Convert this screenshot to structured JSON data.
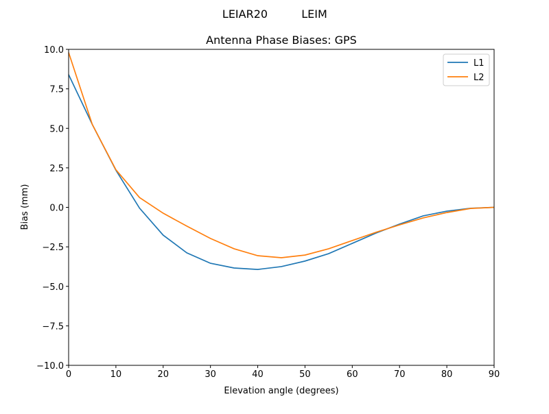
{
  "suptitle_left": "LEIAR20",
  "suptitle_right": "LEIM",
  "chart_data": {
    "type": "line",
    "title": "Antenna Phase Biases: GPS",
    "xlabel": "Elevation angle (degrees)",
    "ylabel": "Bias (mm)",
    "xlim": [
      0,
      90
    ],
    "ylim": [
      -10,
      10
    ],
    "xticks": [
      0,
      10,
      20,
      30,
      40,
      50,
      60,
      70,
      80,
      90
    ],
    "xtick_labels": [
      "0",
      "10",
      "20",
      "30",
      "40",
      "50",
      "60",
      "70",
      "80",
      "90"
    ],
    "yticks": [
      -10,
      -7.5,
      -5,
      -2.5,
      0,
      2.5,
      5,
      7.5,
      10
    ],
    "ytick_labels": [
      "−10.0",
      "−7.5",
      "−5.0",
      "−2.5",
      "0.0",
      "2.5",
      "5.0",
      "7.5",
      "10.0"
    ],
    "grid": false,
    "legend_position": "top-right",
    "x": [
      0,
      5,
      10,
      15,
      20,
      25,
      30,
      35,
      40,
      45,
      50,
      55,
      60,
      65,
      70,
      75,
      80,
      85,
      90
    ],
    "series": [
      {
        "name": "L1",
        "color": "#1f77b4",
        "values": [
          8.4,
          5.25,
          2.35,
          -0.05,
          -1.76,
          -2.88,
          -3.54,
          -3.84,
          -3.93,
          -3.75,
          -3.4,
          -2.93,
          -2.28,
          -1.63,
          -1.06,
          -0.54,
          -0.24,
          -0.06,
          0.0
        ]
      },
      {
        "name": "L2",
        "color": "#ff7f0e",
        "values": [
          9.8,
          5.25,
          2.38,
          0.62,
          -0.37,
          -1.19,
          -1.97,
          -2.62,
          -3.06,
          -3.19,
          -3.02,
          -2.62,
          -2.1,
          -1.58,
          -1.11,
          -0.67,
          -0.33,
          -0.07,
          0.0
        ]
      }
    ]
  }
}
